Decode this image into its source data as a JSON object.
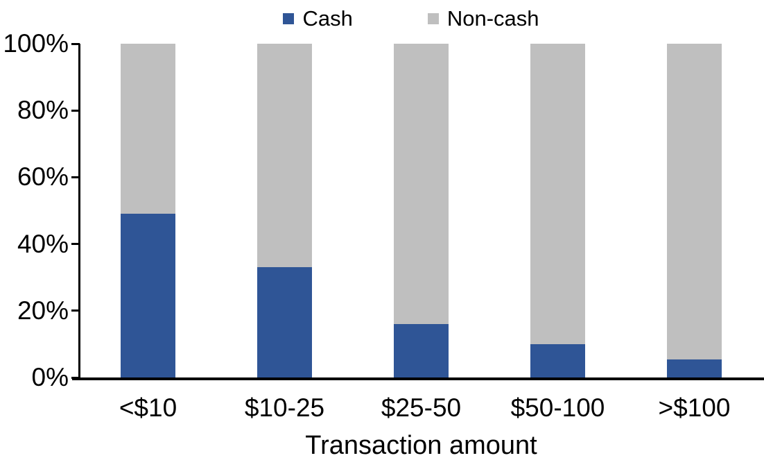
{
  "chart_data": {
    "type": "bar",
    "variant": "stacked-100",
    "xlabel": "Transaction amount",
    "ylabel": "",
    "categories": [
      "<$10",
      "$10-25",
      "$25-50",
      "$50-100",
      ">$100"
    ],
    "series": [
      {
        "name": "Cash",
        "color": "#2F5596",
        "values": [
          49,
          33,
          16,
          10,
          5.5
        ]
      },
      {
        "name": "Non-cash",
        "color": "#BFBFBF",
        "values": [
          51,
          67,
          84,
          90,
          94.5
        ]
      }
    ],
    "y_ticks": [
      "0%",
      "20%",
      "40%",
      "60%",
      "80%",
      "100%"
    ],
    "ylim": [
      0,
      100
    ],
    "legend_position": "top-center",
    "grid": false,
    "axis_color": "#000000",
    "text_color": "#000000",
    "background_color": "#FFFFFF"
  }
}
